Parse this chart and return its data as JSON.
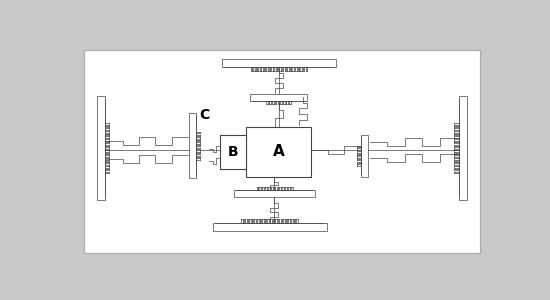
{
  "bg_color": "#c8c8c8",
  "white_bg": "#ffffff",
  "ec": "#444444",
  "label_A": "A",
  "label_B": "B",
  "label_C": "C",
  "fig_width": 5.5,
  "fig_height": 3.0
}
